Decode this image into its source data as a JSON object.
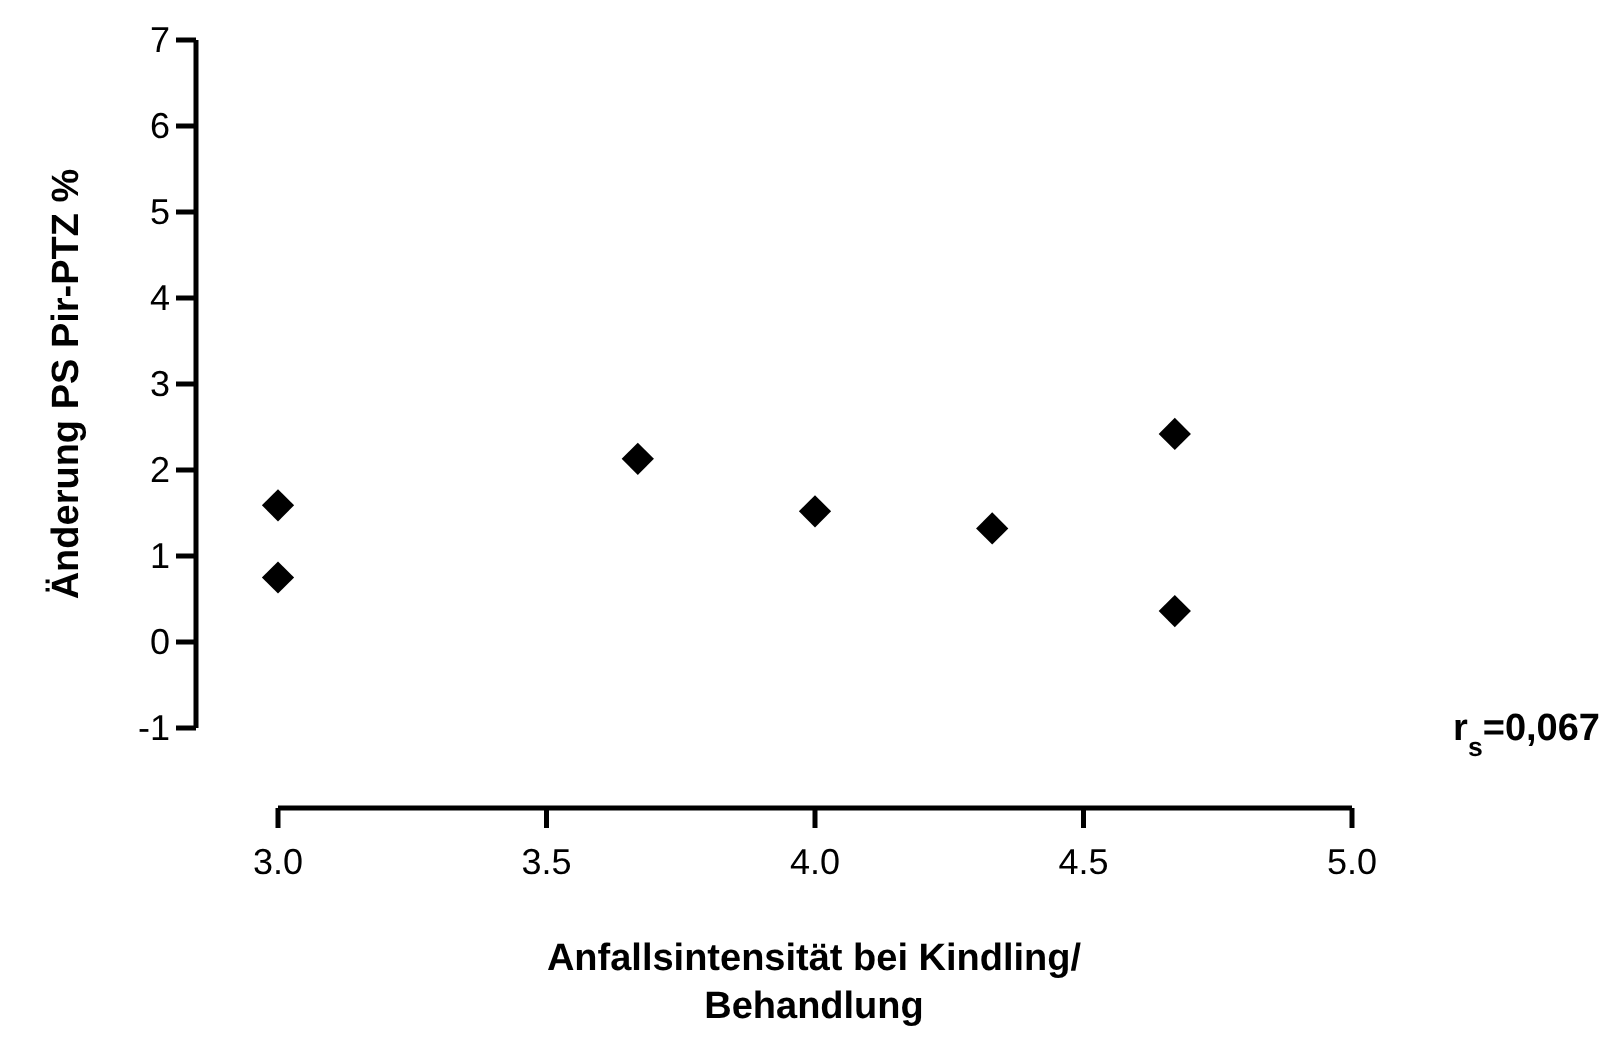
{
  "chart_data": {
    "type": "scatter",
    "xlabel": "Anfallsintensität bei Kindling/ Behandlung",
    "ylabel": "Änderung PS  Pir-PTZ %",
    "x": [
      3.0,
      3.0,
      3.67,
      4.0,
      4.33,
      4.67,
      4.67
    ],
    "values": [
      1.59,
      0.75,
      2.13,
      1.52,
      1.32,
      2.42,
      0.36
    ],
    "color": "#000000",
    "marker": "diamond",
    "xlim": [
      3.0,
      5.0
    ],
    "xticks": [
      {
        "value": 3.0,
        "label": "3.0"
      },
      {
        "value": 3.5,
        "label": "3.5"
      },
      {
        "value": 4.0,
        "label": "4.0"
      },
      {
        "value": 4.5,
        "label": "4.5"
      },
      {
        "value": 5.0,
        "label": "5.0"
      }
    ],
    "ylim": [
      -1,
      7
    ],
    "yticks": [
      -1,
      0,
      1,
      2,
      3,
      4,
      5,
      6,
      7
    ],
    "annotations": [
      "r$_{s}$=0,067"
    ]
  }
}
